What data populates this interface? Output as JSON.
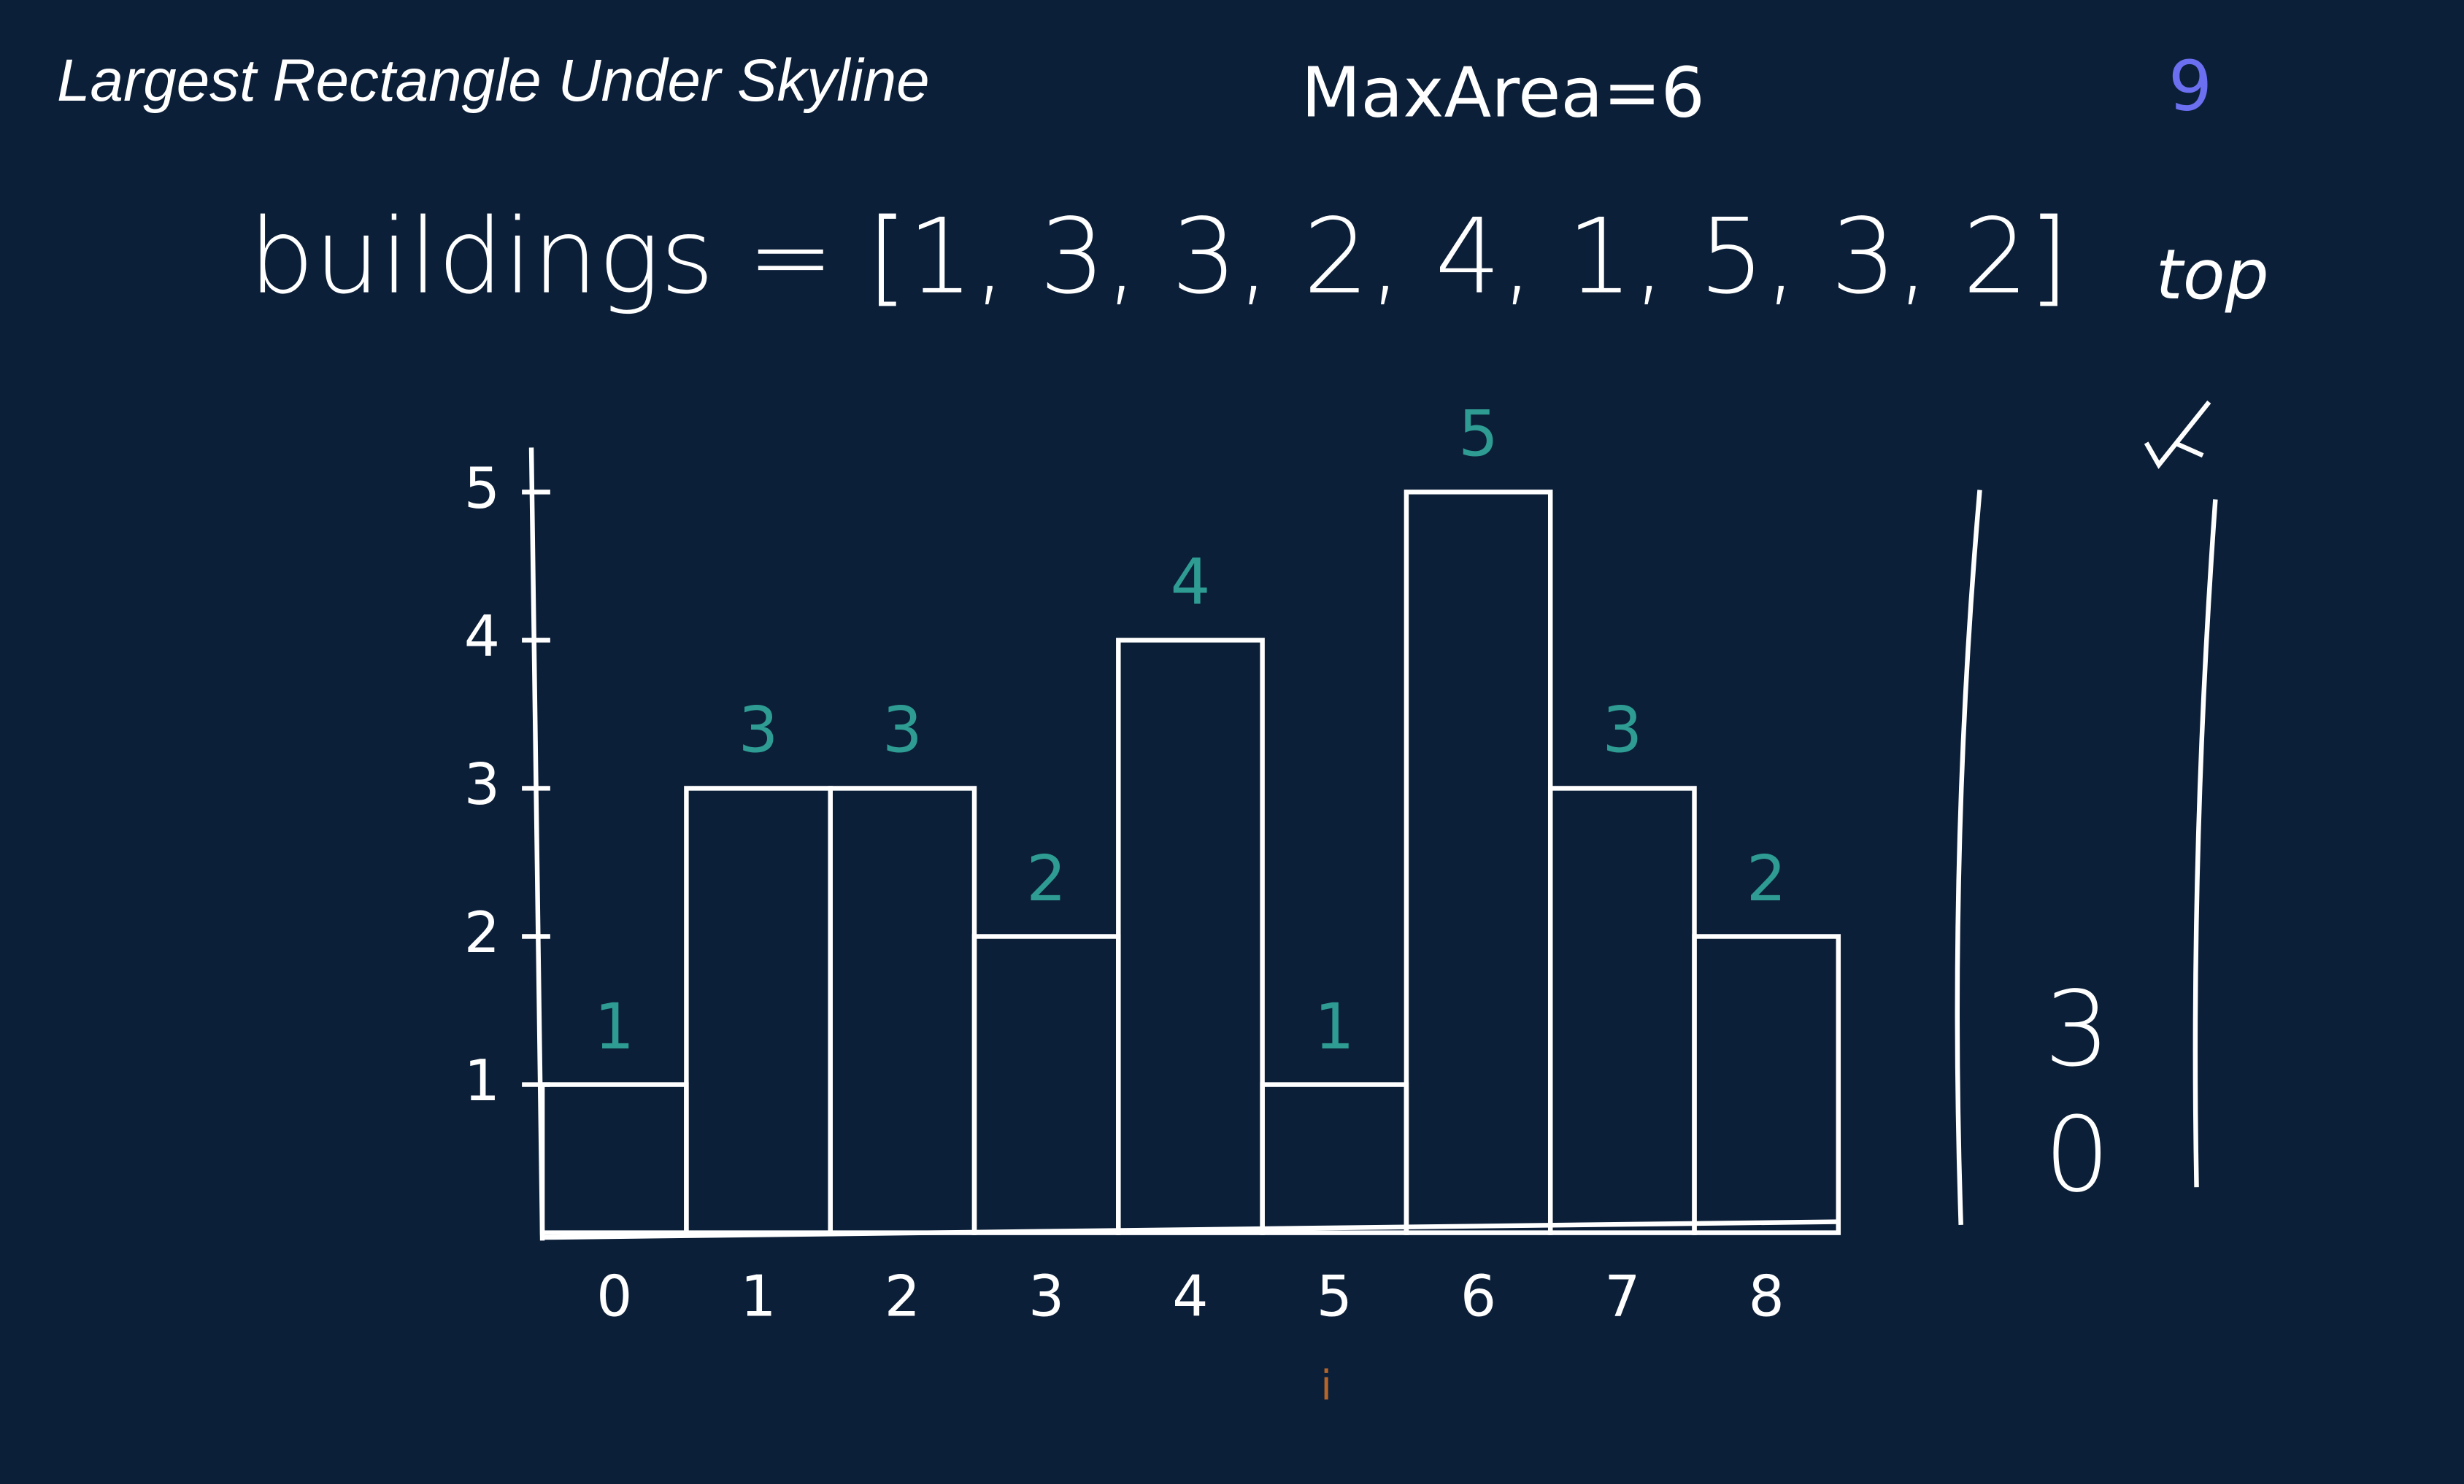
{
  "chart_data": {
    "type": "bar",
    "title": "Largest Rectangle Under Skyline",
    "annotations": {
      "max_area": "MaxArea=6",
      "buildings": "buildings = [1, 3, 3, 2, 4, 1, 5, 3, 2]",
      "top": "top",
      "counter": "9",
      "pointer": "i"
    },
    "categories": [
      "0",
      "1",
      "2",
      "3",
      "4",
      "5",
      "6",
      "7",
      "8"
    ],
    "values": [
      1,
      3,
      3,
      2,
      4,
      1,
      5,
      3,
      2
    ],
    "color": "#ffffff",
    "label_color": "#2e9c92",
    "ylim": [
      0,
      5.3
    ],
    "yticks": [
      1,
      2,
      3,
      4,
      5
    ],
    "stack": [
      0,
      3
    ]
  }
}
